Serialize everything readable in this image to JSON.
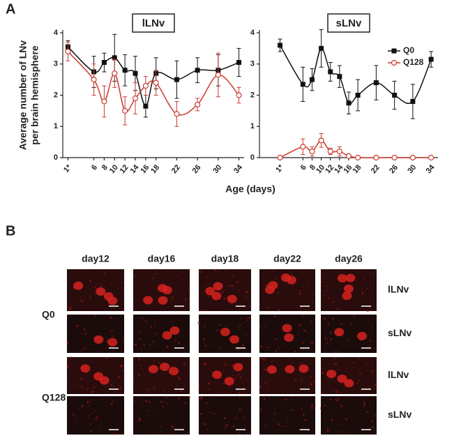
{
  "panel_labels": [
    "A",
    "B"
  ],
  "chart_data": [
    {
      "type": "line",
      "title": "lLNv",
      "ylabel": [
        "Average number of LNv",
        "per brain hemisphere"
      ],
      "xlabel": "Age (days)",
      "x": [
        1,
        6,
        8,
        10,
        12,
        14,
        16,
        18,
        22,
        26,
        30,
        34
      ],
      "xlim": [
        0,
        35
      ],
      "xticks": [
        {
          "value": 1,
          "label": "1*"
        },
        6,
        8,
        10,
        12,
        14,
        16,
        18,
        22,
        26,
        30,
        34
      ],
      "ylim": [
        0,
        4
      ],
      "yticks": [
        0,
        1,
        2,
        3,
        4
      ],
      "series": [
        {
          "name": "Q0",
          "color": "#111111",
          "marker": "square",
          "values": [
            3.55,
            2.75,
            3.05,
            3.2,
            2.8,
            2.7,
            1.65,
            2.7,
            2.5,
            2.8,
            2.8,
            3.05
          ],
          "errors": [
            0.2,
            0.5,
            0.3,
            0.75,
            0.5,
            0.55,
            0.35,
            0.5,
            0.6,
            0.4,
            0.5,
            0.45
          ]
        },
        {
          "name": "Q128",
          "color": "#cc3a2e",
          "marker": "circle-open",
          "values": [
            3.4,
            2.5,
            1.8,
            2.7,
            1.5,
            1.9,
            2.3,
            2.4,
            1.4,
            1.7,
            2.65,
            2.0
          ],
          "errors": [
            0.3,
            0.5,
            0.5,
            0.45,
            0.45,
            0.5,
            0.3,
            0.4,
            0.4,
            0.2,
            0.7,
            0.25
          ]
        }
      ]
    },
    {
      "type": "line",
      "title": "sLNv",
      "legend": "upper right",
      "x": [
        1,
        6,
        8,
        10,
        12,
        14,
        16,
        18,
        22,
        26,
        30,
        34
      ],
      "xlim": [
        -3.5,
        35.5
      ],
      "xticks": [
        {
          "value": 1,
          "label": "1*"
        },
        6,
        8,
        10,
        12,
        14,
        16,
        18,
        22,
        26,
        30,
        34
      ],
      "ylim": [
        0,
        4
      ],
      "yticks": [
        0,
        1,
        2,
        3,
        4
      ],
      "series": [
        {
          "name": "Q0",
          "color": "#111111",
          "marker": "square",
          "values": [
            3.6,
            2.35,
            2.5,
            3.5,
            2.75,
            2.6,
            1.75,
            2.0,
            2.4,
            2.0,
            1.8,
            3.15
          ],
          "errors": [
            0.2,
            0.55,
            0.35,
            0.6,
            0.3,
            0.35,
            0.35,
            0.5,
            0.55,
            0.45,
            0.55,
            0.25
          ]
        },
        {
          "name": "Q128",
          "color": "#cc3a2e",
          "marker": "circle-open",
          "values": [
            0,
            0.35,
            0.2,
            0.55,
            0.2,
            0.2,
            0.05,
            0,
            0,
            0,
            0,
            0
          ],
          "errors": [
            0,
            0.25,
            0.15,
            0.22,
            0.1,
            0.15,
            0.05,
            0,
            0,
            0,
            0,
            0
          ]
        }
      ]
    }
  ],
  "panel_b": {
    "columns": [
      "day12",
      "day16",
      "day18",
      "day22",
      "day26"
    ],
    "groups": [
      "Q0",
      "Q128"
    ],
    "row_labels": [
      "lLNv",
      "sLNv",
      "lLNv",
      "sLNv"
    ]
  }
}
